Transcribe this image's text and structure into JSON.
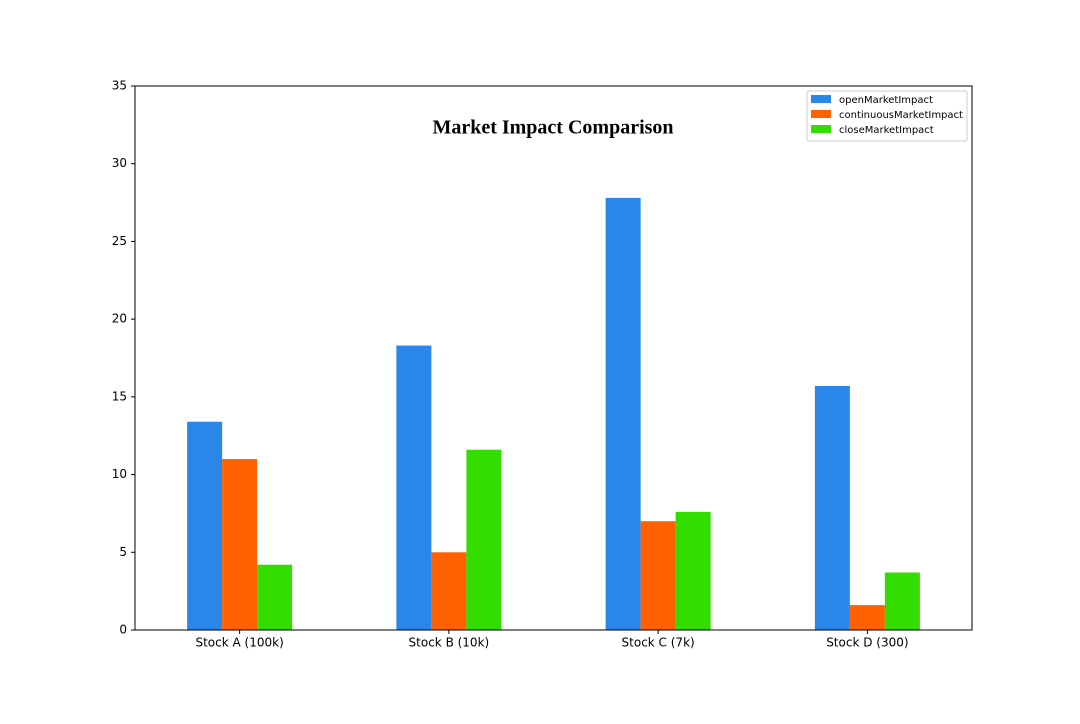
{
  "chart_data": {
    "type": "bar",
    "title": "Market Impact Comparison",
    "categories": [
      "Stock A (100k)",
      "Stock B (10k)",
      "Stock C (7k)",
      "Stock D (300)"
    ],
    "series": [
      {
        "name": "openMarketImpact",
        "color": "#2a86e8",
        "values": [
          13.4,
          18.3,
          27.8,
          15.7
        ]
      },
      {
        "name": "continuousMarketImpact",
        "color": "#ff6000",
        "values": [
          11.0,
          5.0,
          7.0,
          1.6
        ]
      },
      {
        "name": "closeMarketImpact",
        "color": "#33dd00",
        "values": [
          4.2,
          11.6,
          7.6,
          3.7
        ]
      }
    ],
    "ylim": [
      0,
      35
    ],
    "yticks": [
      0,
      5,
      10,
      15,
      20,
      25,
      30,
      35
    ],
    "grid": false,
    "legend": "upper right"
  }
}
